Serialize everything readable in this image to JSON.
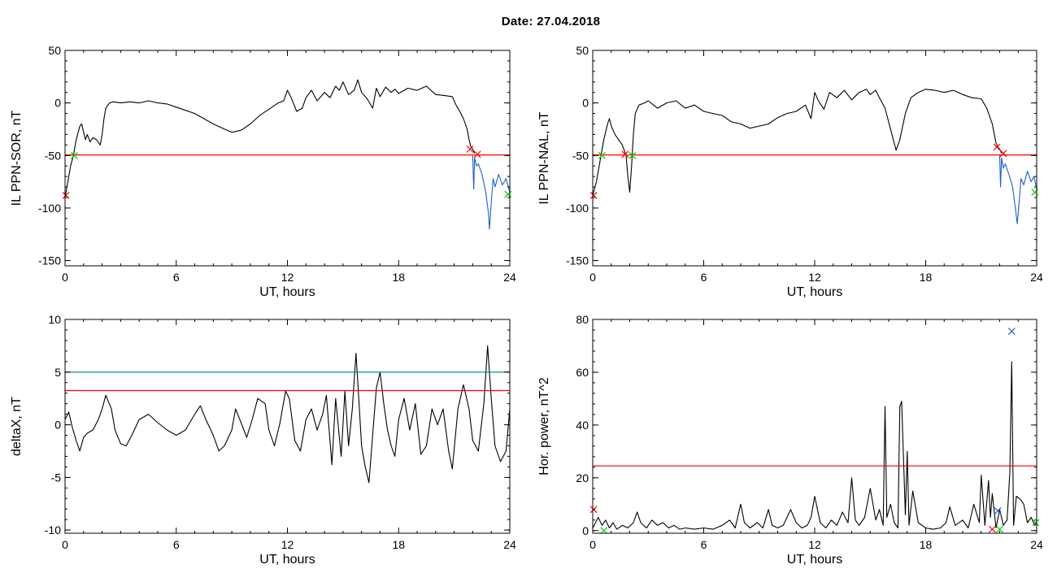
{
  "figure": {
    "title": "Date:  27.04.2018"
  },
  "chart_data": [
    {
      "type": "line",
      "ylabel": "IL PPN-SOR, nT",
      "xlabel": "UT, hours",
      "xlim": [
        0,
        24
      ],
      "ylim": [
        -155,
        50
      ],
      "xticks": [
        0,
        6,
        12,
        18,
        24
      ],
      "yticks": [
        50,
        0,
        -50,
        -100,
        -150
      ],
      "series": [
        {
          "color": "#000000",
          "x": [
            0,
            0.1,
            0.2,
            0.3,
            0.45,
            0.6,
            0.8,
            0.9,
            1.0,
            1.1,
            1.2,
            1.35,
            1.5,
            1.7,
            1.9,
            2.0,
            2.1,
            2.2,
            2.4,
            2.6,
            3.0,
            3.5,
            4.0,
            4.5,
            5.0,
            5.5,
            6.0,
            6.5,
            7.0,
            7.5,
            8.0,
            8.5,
            9.0,
            9.5,
            10.0,
            10.5,
            11.0,
            11.5,
            11.8,
            12.0,
            12.2,
            12.5,
            12.8,
            13.0,
            13.3,
            13.6,
            14.0,
            14.3,
            14.6,
            14.8,
            15.0,
            15.3,
            15.6,
            15.8,
            16.0,
            16.3,
            16.6,
            16.8,
            17.0,
            17.3,
            17.6,
            17.8,
            18.0,
            18.5,
            19.0,
            19.5,
            20.0,
            20.5,
            20.9,
            21.1,
            21.3,
            21.5,
            21.7,
            21.8,
            21.9,
            22.0,
            22.1
          ],
          "y": [
            -90,
            -80,
            -70,
            -60,
            -50,
            -35,
            -22,
            -20,
            -28,
            -35,
            -30,
            -37,
            -33,
            -35,
            -40,
            -30,
            -15,
            -5,
            0,
            1,
            0,
            1,
            0,
            2,
            0,
            -1,
            -4,
            -7,
            -10,
            -15,
            -20,
            -24,
            -28,
            -26,
            -20,
            -12,
            -6,
            0,
            2,
            12,
            5,
            -8,
            -5,
            5,
            12,
            2,
            10,
            5,
            16,
            12,
            20,
            8,
            12,
            22,
            10,
            4,
            -5,
            14,
            6,
            15,
            10,
            13,
            9,
            14,
            12,
            16,
            8,
            7,
            6,
            -2,
            -8,
            -15,
            -25,
            -35,
            -42,
            -44,
            -48
          ]
        },
        {
          "color": "#1f5fd0",
          "x": [
            22.0,
            22.05,
            22.1,
            22.2,
            22.3,
            22.5,
            22.7,
            22.85,
            22.9,
            23.0,
            23.1,
            23.2,
            23.4,
            23.6,
            23.8,
            24.0
          ],
          "y": [
            -50,
            -82,
            -52,
            -60,
            -58,
            -68,
            -85,
            -105,
            -120,
            -95,
            -72,
            -80,
            -68,
            -78,
            -72,
            -85
          ]
        },
        {
          "color": "#ff0000",
          "x": [
            0,
            24
          ],
          "y": [
            -49.5,
            -49.5
          ]
        }
      ],
      "markers": [
        {
          "x": 0.05,
          "y": -88,
          "symbol": "x",
          "color": "#ff0000"
        },
        {
          "x": 0.5,
          "y": -50,
          "symbol": "x",
          "color": "#00cc00"
        },
        {
          "x": 21.85,
          "y": -44,
          "symbol": "x",
          "color": "#ff0000"
        },
        {
          "x": 22.25,
          "y": -49,
          "symbol": "x",
          "color": "#ff0000"
        },
        {
          "x": 23.9,
          "y": -87,
          "symbol": "x",
          "color": "#00cc00"
        }
      ]
    },
    {
      "type": "line",
      "ylabel": "IL PPN-NAL, nT",
      "xlabel": "UT, hours",
      "xlim": [
        0,
        24
      ],
      "ylim": [
        -155,
        50
      ],
      "xticks": [
        0,
        6,
        12,
        18,
        24
      ],
      "yticks": [
        50,
        0,
        -50,
        -100,
        -150
      ],
      "series": [
        {
          "color": "#000000",
          "x": [
            0,
            0.2,
            0.4,
            0.6,
            0.8,
            0.9,
            1.0,
            1.2,
            1.4,
            1.6,
            1.8,
            1.9,
            2.0,
            2.1,
            2.2,
            2.3,
            2.5,
            2.8,
            3.0,
            3.5,
            4.0,
            4.5,
            5.0,
            5.5,
            6.0,
            6.5,
            7.0,
            7.5,
            8.0,
            8.5,
            9.0,
            9.5,
            10.0,
            10.5,
            11.0,
            11.5,
            11.8,
            12.0,
            12.2,
            12.5,
            12.8,
            13.2,
            13.6,
            14.0,
            14.4,
            14.8,
            15.0,
            15.3,
            15.5,
            15.8,
            16.1,
            16.4,
            16.6,
            16.9,
            17.2,
            17.6,
            18.0,
            18.5,
            19.0,
            19.5,
            20.0,
            20.5,
            21.0,
            21.3,
            21.6,
            21.8,
            21.9,
            22.0,
            22.1
          ],
          "y": [
            -88,
            -75,
            -55,
            -35,
            -20,
            -15,
            -22,
            -30,
            -35,
            -40,
            -50,
            -70,
            -85,
            -60,
            -30,
            -10,
            -2,
            0,
            2,
            -5,
            0,
            2,
            -5,
            -2,
            -8,
            -10,
            -12,
            -18,
            -20,
            -24,
            -22,
            -20,
            -14,
            -10,
            -8,
            -2,
            -15,
            10,
            2,
            -6,
            10,
            5,
            12,
            3,
            10,
            13,
            8,
            12,
            5,
            -5,
            -25,
            -45,
            -35,
            -10,
            5,
            10,
            13,
            12,
            10,
            12,
            8,
            5,
            4,
            -5,
            -20,
            -38,
            -42,
            -44,
            -48
          ]
        },
        {
          "color": "#1f5fd0",
          "x": [
            22.0,
            22.05,
            22.1,
            22.2,
            22.3,
            22.5,
            22.7,
            22.85,
            22.95,
            23.05,
            23.15,
            23.3,
            23.5,
            23.7,
            23.85,
            24.0
          ],
          "y": [
            -50,
            -80,
            -52,
            -62,
            -58,
            -68,
            -80,
            -100,
            -115,
            -95,
            -72,
            -78,
            -65,
            -75,
            -70,
            -82
          ]
        },
        {
          "color": "#ff0000",
          "x": [
            0,
            24
          ],
          "y": [
            -49.5,
            -49.5
          ]
        }
      ],
      "markers": [
        {
          "x": 0.05,
          "y": -88,
          "symbol": "x",
          "color": "#ff0000"
        },
        {
          "x": 0.5,
          "y": -50,
          "symbol": "x",
          "color": "#00cc00"
        },
        {
          "x": 1.75,
          "y": -49,
          "symbol": "x",
          "color": "#ff0000"
        },
        {
          "x": 2.15,
          "y": -50,
          "symbol": "x",
          "color": "#00cc00"
        },
        {
          "x": 21.85,
          "y": -42,
          "symbol": "x",
          "color": "#ff0000"
        },
        {
          "x": 22.2,
          "y": -48,
          "symbol": "x",
          "color": "#ff0000"
        },
        {
          "x": 23.9,
          "y": -85,
          "symbol": "x",
          "color": "#00cc00"
        }
      ]
    },
    {
      "type": "line",
      "ylabel": "deltaX, nT",
      "xlabel": "UT, hours",
      "xlim": [
        0,
        24
      ],
      "ylim": [
        -10.3,
        10
      ],
      "xticks": [
        0,
        6,
        12,
        18,
        24
      ],
      "yticks": [
        10,
        5,
        0,
        -5,
        -10
      ],
      "series": [
        {
          "color": "#000000",
          "x": [
            0,
            0.2,
            0.4,
            0.6,
            0.8,
            1.0,
            1.2,
            1.5,
            1.8,
            2.0,
            2.2,
            2.5,
            2.7,
            3.0,
            3.3,
            3.6,
            4.0,
            4.5,
            5.0,
            5.5,
            6.0,
            6.5,
            7.0,
            7.3,
            7.6,
            8.0,
            8.3,
            8.6,
            9.0,
            9.2,
            9.5,
            9.8,
            10.1,
            10.4,
            10.8,
            11.0,
            11.3,
            11.6,
            11.9,
            12.1,
            12.4,
            12.7,
            13.0,
            13.3,
            13.6,
            13.9,
            14.1,
            14.4,
            14.6,
            14.9,
            15.1,
            15.3,
            15.5,
            15.7,
            15.8,
            16.0,
            16.2,
            16.4,
            16.6,
            16.8,
            17.0,
            17.2,
            17.4,
            17.6,
            17.8,
            18.0,
            18.3,
            18.6,
            18.9,
            19.2,
            19.5,
            19.8,
            20.1,
            20.4,
            20.7,
            20.9,
            21.2,
            21.5,
            21.8,
            22.0,
            22.3,
            22.6,
            22.8,
            23.0,
            23.2,
            23.5,
            23.8,
            24.0
          ],
          "y": [
            0.5,
            1.2,
            -0.3,
            -1.5,
            -2.5,
            -1.2,
            -0.8,
            -0.5,
            0.5,
            1.5,
            2.8,
            1.5,
            -0.5,
            -1.8,
            -2.0,
            -1.0,
            0.5,
            1.0,
            0.2,
            -0.5,
            -1.0,
            -0.5,
            1.0,
            1.8,
            0.5,
            -1.0,
            -2.5,
            -2.0,
            -0.5,
            1.5,
            0.2,
            -1.2,
            0.5,
            2.5,
            2.0,
            -0.5,
            -2.0,
            0.2,
            3.2,
            2.5,
            -1.5,
            -2.5,
            0.5,
            1.5,
            -0.5,
            1.0,
            2.8,
            -3.8,
            2.5,
            -3.0,
            3.2,
            -2.0,
            1.5,
            6.8,
            4.0,
            -2.0,
            -4.0,
            -5.5,
            -1.0,
            3.5,
            5.0,
            2.0,
            -0.5,
            -2.0,
            -3.0,
            0.5,
            2.5,
            -0.5,
            2.0,
            -2.8,
            -2.0,
            1.5,
            0.0,
            1.5,
            -2.5,
            -4.2,
            1.5,
            3.8,
            1.5,
            -1.5,
            -2.5,
            2.0,
            7.5,
            2.5,
            -2.0,
            -3.5,
            -2.5,
            1.5
          ]
        },
        {
          "color": "#008080",
          "x": [
            0,
            24
          ],
          "y": [
            5,
            5
          ]
        },
        {
          "color": "#ff0000",
          "x": [
            0,
            24
          ],
          "y": [
            3.25,
            3.25
          ]
        }
      ]
    },
    {
      "type": "line",
      "ylabel": "Hor. power, nT^2",
      "xlabel": "UT, hours",
      "xlim": [
        0,
        24
      ],
      "ylim": [
        -1,
        80
      ],
      "xticks": [
        0,
        6,
        12,
        18,
        24
      ],
      "yticks": [
        80,
        60,
        40,
        20,
        0
      ],
      "series": [
        {
          "color": "#000000",
          "x": [
            0,
            0.3,
            0.5,
            0.7,
            0.9,
            1.1,
            1.3,
            1.6,
            1.9,
            2.2,
            2.4,
            2.6,
            2.9,
            3.2,
            3.5,
            3.8,
            4.1,
            4.4,
            4.7,
            5.0,
            5.5,
            6.0,
            6.5,
            7.0,
            7.4,
            7.7,
            8.0,
            8.2,
            8.5,
            8.9,
            9.2,
            9.5,
            9.7,
            10.0,
            10.3,
            10.7,
            11.0,
            11.3,
            11.6,
            11.8,
            12.0,
            12.3,
            12.6,
            12.9,
            13.2,
            13.5,
            13.8,
            14.0,
            14.2,
            14.4,
            14.7,
            15.0,
            15.3,
            15.5,
            15.7,
            15.8,
            15.9,
            16.1,
            16.3,
            16.5,
            16.6,
            16.7,
            16.9,
            17.0,
            17.1,
            17.3,
            17.6,
            18.0,
            18.4,
            18.8,
            19.1,
            19.3,
            19.6,
            20.0,
            20.3,
            20.6,
            20.9,
            21.0,
            21.2,
            21.4,
            21.5,
            21.6,
            21.8,
            22.0,
            22.2,
            22.4,
            22.55,
            22.65,
            22.75,
            22.9,
            23.1,
            23.3,
            23.5,
            23.7,
            23.9,
            24.0
          ],
          "y": [
            1,
            5,
            2,
            4,
            1,
            3,
            0.5,
            2,
            1,
            3,
            7,
            3,
            1,
            4,
            2,
            3,
            1,
            2,
            0.5,
            1,
            0.5,
            1,
            0.5,
            2,
            4,
            1,
            10,
            3,
            1,
            3,
            1,
            8,
            2,
            1,
            2,
            8,
            3,
            1,
            2,
            5,
            13,
            3,
            1,
            4,
            2,
            7,
            3,
            20,
            4,
            2,
            5,
            16,
            4,
            8,
            2,
            47,
            5,
            10,
            3,
            1,
            47,
            49,
            6,
            30,
            2,
            15,
            3,
            1,
            0.5,
            1,
            3,
            9,
            2,
            4,
            1,
            10,
            3,
            21,
            2,
            19,
            5,
            14,
            1,
            8,
            2,
            4,
            22,
            64,
            2,
            13,
            12,
            10,
            3,
            5,
            2,
            3
          ]
        },
        {
          "color": "#ff0000",
          "x": [
            0,
            24
          ],
          "y": [
            24.5,
            24.5
          ]
        }
      ],
      "markers": [
        {
          "x": 0.05,
          "y": 8,
          "symbol": "x",
          "color": "#ff0000"
        },
        {
          "x": 0.6,
          "y": 0,
          "symbol": "x",
          "color": "#00cc00"
        },
        {
          "x": 21.6,
          "y": 0.5,
          "symbol": "x",
          "color": "#ff0000"
        },
        {
          "x": 21.9,
          "y": 7.5,
          "symbol": "x",
          "color": "#1f5fd0"
        },
        {
          "x": 22.0,
          "y": 0.5,
          "symbol": "x",
          "color": "#00cc00"
        },
        {
          "x": 22.65,
          "y": 75.5,
          "symbol": "x",
          "color": "#1f5fd0"
        },
        {
          "x": 23.95,
          "y": 3,
          "symbol": "x",
          "color": "#00cc00"
        }
      ]
    }
  ]
}
